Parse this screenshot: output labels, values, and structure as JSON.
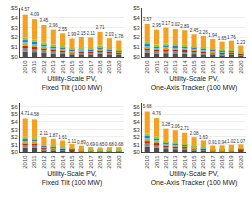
{
  "chart_data": [
    {
      "type": "bar",
      "stacked": true,
      "grid": true,
      "data_labels": true,
      "xlabel": "Utility-Scale PV,\nFixed Tilt (100 MW)",
      "categories": [
        "2010",
        "2011",
        "2012",
        "2013",
        "2014",
        "2015",
        "2016",
        "2017",
        "2018",
        "2019",
        "2020"
      ],
      "series": [
        {
          "color": "#4d4d4d",
          "values": [
            0.5484,
            0.4908,
            0.414,
            0.3552,
            0.306,
            0.2388,
            0.258,
            0.2532,
            0.3252,
            0.2436,
            0.2136
          ]
        },
        {
          "color": "#888888",
          "values": [
            0.4113,
            0.3681,
            0.3105,
            0.2664,
            0.2295,
            0.1791,
            0.1935,
            0.1899,
            0.2439,
            0.1827,
            0.1602
          ]
        },
        {
          "color": "#cc2200",
          "values": [
            0.1828,
            0.1636,
            0.138,
            0.1184,
            0.102,
            0.0796,
            0.086,
            0.0844,
            0.1084,
            0.0812,
            0.0712
          ]
        },
        {
          "color": "#e8a000",
          "values": [
            0.2285,
            0.2045,
            0.1725,
            0.148,
            0.1275,
            0.0995,
            0.1075,
            0.1055,
            0.1355,
            0.1015,
            0.089
          ]
        },
        {
          "color": "#55ccee",
          "values": [
            0.15995,
            0.14315,
            0.12075,
            0.1036,
            0.08925,
            0.06965,
            0.07525,
            0.07385,
            0.09485,
            0.07105,
            0.0623
          ]
        },
        {
          "color": "#3377cc",
          "values": [
            0.1828,
            0.1636,
            0.138,
            0.1184,
            0.102,
            0.0796,
            0.086,
            0.0844,
            0.1084,
            0.0812,
            0.0712
          ]
        },
        {
          "color": "#88cc44",
          "values": [
            0.25135,
            0.22495,
            0.18975,
            0.1628,
            0.14025,
            0.10945,
            0.11825,
            0.11605,
            0.14905,
            0.11165,
            0.0979
          ]
        },
        {
          "color": "#f5a020",
          "values": [
            2.35812,
            2.11044,
            1.7802,
            1.52736,
            1.3158,
            1.02684,
            1.1094,
            1.08876,
            1.39836,
            1.04748,
            0.91848
          ]
        }
      ],
      "totals": [
        4.57,
        4.09,
        3.45,
        2.96,
        2.55,
        1.99,
        2.15,
        2.11,
        2.71,
        2.03,
        1.78
      ],
      "ylim": [
        0,
        5.0
      ],
      "yticks": [
        {
          "value": 0,
          "label": "$0"
        },
        {
          "value": 1,
          "label": "$1"
        },
        {
          "value": 2,
          "label": "$2"
        },
        {
          "value": 3,
          "label": "$3"
        },
        {
          "value": 4,
          "label": "$4"
        },
        {
          "value": 5,
          "label": "$5"
        }
      ]
    },
    {
      "type": "bar",
      "stacked": true,
      "grid": true,
      "data_labels": true,
      "xlabel": "Utility-Scale PV,\nOne-Axis Tracker (100 MW)",
      "categories": [
        "2010",
        "2011",
        "2012",
        "2013",
        "2014",
        "2015",
        "2016",
        "2017",
        "2018",
        "2019",
        "2020"
      ],
      "series": [
        {
          "color": "#4d4d4d",
          "values": [
            0.4284,
            0.354,
            0.3804,
            0.3624,
            0.3468,
            0.294,
            0.2712,
            0.2328,
            0.198,
            0.2112,
            0.1476
          ]
        },
        {
          "color": "#888888",
          "values": [
            0.3213,
            0.2655,
            0.2853,
            0.2718,
            0.2601,
            0.2205,
            0.2034,
            0.1746,
            0.1485,
            0.1584,
            0.1107
          ]
        },
        {
          "color": "#cc2200",
          "values": [
            0.1428,
            0.118,
            0.1268,
            0.1208,
            0.1156,
            0.098,
            0.0904,
            0.0776,
            0.066,
            0.0704,
            0.0492
          ]
        },
        {
          "color": "#e8a000",
          "values": [
            0.1785,
            0.1475,
            0.1585,
            0.151,
            0.1445,
            0.1225,
            0.113,
            0.097,
            0.0825,
            0.088,
            0.0615
          ]
        },
        {
          "color": "#55ccee",
          "values": [
            0.12495,
            0.10325,
            0.11095,
            0.1057,
            0.10115,
            0.08575,
            0.0791,
            0.0679,
            0.05775,
            0.0616,
            0.04305
          ]
        },
        {
          "color": "#3377cc",
          "values": [
            0.1428,
            0.118,
            0.1268,
            0.1208,
            0.1156,
            0.098,
            0.0904,
            0.0776,
            0.066,
            0.0704,
            0.0492
          ]
        },
        {
          "color": "#88cc44",
          "values": [
            0.19635,
            0.16225,
            0.17435,
            0.1661,
            0.15895,
            0.13475,
            0.1243,
            0.1067,
            0.09075,
            0.0968,
            0.06765
          ]
        },
        {
          "color": "#f5a020",
          "values": [
            1.84212,
            1.5222,
            1.63572,
            1.55832,
            1.49124,
            1.2642,
            1.16616,
            1.00104,
            0.8514,
            0.90816,
            0.63468
          ]
        }
      ],
      "totals": [
        3.57,
        2.95,
        3.17,
        3.02,
        2.89,
        2.45,
        2.26,
        1.94,
        1.65,
        1.76,
        1.23
      ],
      "ylim": [
        0,
        5.0
      ],
      "yticks": [
        {
          "value": 0,
          "label": "$0"
        },
        {
          "value": 1,
          "label": "$1"
        },
        {
          "value": 2,
          "label": "$2"
        },
        {
          "value": 3,
          "label": "$3"
        },
        {
          "value": 4,
          "label": "$4"
        },
        {
          "value": 5,
          "label": "$5"
        }
      ]
    },
    {
      "type": "bar",
      "stacked": true,
      "grid": true,
      "data_labels": true,
      "xlabel": "Utility-Scale PV,\nFixed Tilt (100 MW)",
      "categories": [
        "2010",
        "2011",
        "2012",
        "2013",
        "2014",
        "2015",
        "2016",
        "2017",
        "2018",
        "2019",
        "2020"
      ],
      "series": [
        {
          "color": "#4d4d4d",
          "values": [
            0.5652,
            0.5496,
            0.2532,
            0.2244,
            0.1932,
            0.1332,
            0.1068,
            0.0828,
            0.078,
            0.0816,
            0.0816
          ]
        },
        {
          "color": "#888888",
          "values": [
            0.4239,
            0.4122,
            0.1899,
            0.1683,
            0.1449,
            0.0999,
            0.0801,
            0.0621,
            0.0585,
            0.0612,
            0.0612
          ]
        },
        {
          "color": "#cc2200",
          "values": [
            0.1884,
            0.1832,
            0.0844,
            0.0748,
            0.0644,
            0.0444,
            0.0356,
            0.0276,
            0.026,
            0.0272,
            0.0272
          ]
        },
        {
          "color": "#e8a000",
          "values": [
            0.2355,
            0.229,
            0.1055,
            0.0935,
            0.0805,
            0.0555,
            0.0445,
            0.0345,
            0.0325,
            0.034,
            0.034
          ]
        },
        {
          "color": "#55ccee",
          "values": [
            0.16485,
            0.1603,
            0.07385,
            0.06545,
            0.05635,
            0.03885,
            0.03115,
            0.02415,
            0.02275,
            0.0238,
            0.0238
          ]
        },
        {
          "color": "#3377cc",
          "values": [
            0.1884,
            0.1832,
            0.0844,
            0.0748,
            0.0644,
            0.0444,
            0.0356,
            0.0276,
            0.026,
            0.0272,
            0.0272
          ]
        },
        {
          "color": "#88cc44",
          "values": [
            0.25905,
            0.2519,
            0.11605,
            0.10285,
            0.08855,
            0.06105,
            0.04895,
            0.03795,
            0.03575,
            0.0374,
            0.0374
          ]
        },
        {
          "color": "#f5a020",
          "values": [
            2.43036,
            2.36328,
            1.08876,
            0.96492,
            0.83076,
            0.57276,
            0.45924,
            0.35604,
            0.3354,
            0.35088,
            0.35088
          ]
        }
      ],
      "totals": [
        4.71,
        4.58,
        2.11,
        1.87,
        1.61,
        1.11,
        0.89,
        0.69,
        0.65,
        0.68,
        0.68
      ],
      "ylim": [
        0,
        6.5
      ],
      "yticks": [
        {
          "value": 0,
          "label": "$0"
        },
        {
          "value": 1,
          "label": "$1"
        },
        {
          "value": 2,
          "label": "$2"
        },
        {
          "value": 3,
          "label": "$3"
        },
        {
          "value": 4,
          "label": "$4"
        },
        {
          "value": 5,
          "label": "$5"
        },
        {
          "value": 6,
          "label": "$6"
        }
      ]
    },
    {
      "type": "bar",
      "stacked": true,
      "grid": true,
      "data_labels": true,
      "xlabel": "Utility-Scale PV,\nOne-Axis Tracker (100 MW)",
      "categories": [
        "2010",
        "2011",
        "2012",
        "2013",
        "2014",
        "2015",
        "2016",
        "2017",
        "2018",
        "2019",
        "2020"
      ],
      "series": [
        {
          "color": "#4d4d4d",
          "values": [
            0.6816,
            0.5712,
            0.3936,
            0.3672,
            0.3252,
            0.2496,
            0.1956,
            0.1092,
            0.1128,
            0.1224,
            0.1284
          ]
        },
        {
          "color": "#888888",
          "values": [
            0.5112,
            0.4284,
            0.2952,
            0.2754,
            0.2439,
            0.1872,
            0.1467,
            0.0819,
            0.0846,
            0.0918,
            0.0963
          ]
        },
        {
          "color": "#cc2200",
          "values": [
            0.2272,
            0.1904,
            0.1312,
            0.1224,
            0.1084,
            0.0832,
            0.0652,
            0.0364,
            0.0376,
            0.0408,
            0.0428
          ]
        },
        {
          "color": "#e8a000",
          "values": [
            0.284,
            0.238,
            0.164,
            0.153,
            0.1355,
            0.104,
            0.0815,
            0.0455,
            0.047,
            0.051,
            0.0535
          ]
        },
        {
          "color": "#55ccee",
          "values": [
            0.1988,
            0.1666,
            0.1148,
            0.1071,
            0.09485,
            0.0728,
            0.05705,
            0.03185,
            0.0329,
            0.0357,
            0.03745
          ]
        },
        {
          "color": "#3377cc",
          "values": [
            0.2272,
            0.1904,
            0.1312,
            0.1224,
            0.1084,
            0.0832,
            0.0652,
            0.0364,
            0.0376,
            0.0408,
            0.0428
          ]
        },
        {
          "color": "#88cc44",
          "values": [
            0.3124,
            0.2618,
            0.1804,
            0.1683,
            0.14905,
            0.1144,
            0.08965,
            0.05005,
            0.0517,
            0.0561,
            0.05885
          ]
        },
        {
          "color": "#f5a020",
          "values": [
            2.93088,
            2.45616,
            1.69248,
            1.57896,
            1.39836,
            1.07328,
            0.84108,
            0.46956,
            0.48504,
            0.52632,
            0.55212
          ]
        }
      ],
      "totals": [
        5.68,
        4.76,
        3.28,
        3.06,
        2.71,
        2.08,
        1.63,
        0.91,
        0.94,
        1.02,
        1.07
      ],
      "ylim": [
        0,
        6.5
      ],
      "yticks": [
        {
          "value": 0,
          "label": "$0"
        },
        {
          "value": 1,
          "label": "$1"
        },
        {
          "value": 2,
          "label": "$2"
        },
        {
          "value": 3,
          "label": "$3"
        },
        {
          "value": 4,
          "label": "$4"
        },
        {
          "value": 5,
          "label": "$5"
        },
        {
          "value": 6,
          "label": "$6"
        }
      ]
    }
  ]
}
